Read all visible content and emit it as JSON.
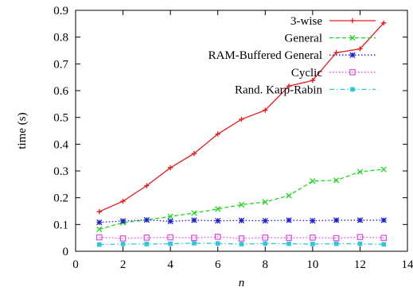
{
  "chart_data": {
    "type": "line",
    "title": "",
    "xlabel": "n",
    "ylabel": "time (s)",
    "xlim": [
      0,
      14
    ],
    "ylim": [
      0,
      0.9
    ],
    "xticks": [
      0,
      2,
      4,
      6,
      8,
      10,
      12,
      14
    ],
    "yticks": [
      0,
      0.1,
      0.2,
      0.3,
      0.4,
      0.5,
      0.6,
      0.7,
      0.8,
      0.9
    ],
    "grid": false,
    "legend_position": "top-right",
    "x": [
      1,
      2,
      3,
      4,
      5,
      6,
      7,
      8,
      9,
      10,
      11,
      12,
      13
    ],
    "series": [
      {
        "name": "3-wise",
        "color": "#e41a1c",
        "marker": "plus",
        "dash": "solid",
        "values": [
          0.148,
          0.187,
          0.245,
          0.312,
          0.365,
          0.438,
          0.493,
          0.527,
          0.617,
          0.638,
          0.742,
          0.756,
          0.853
        ]
      },
      {
        "name": "General",
        "color": "#1fd61f",
        "marker": "x",
        "dash": "dashed",
        "values": [
          0.082,
          0.107,
          0.117,
          0.13,
          0.143,
          0.158,
          0.174,
          0.184,
          0.208,
          0.262,
          0.265,
          0.297,
          0.306
        ]
      },
      {
        "name": "RAM-Buffered General",
        "color": "#1f1fd6",
        "marker": "star",
        "dash": "dotted",
        "values": [
          0.108,
          0.113,
          0.117,
          0.112,
          0.116,
          0.114,
          0.115,
          0.114,
          0.116,
          0.114,
          0.116,
          0.116,
          0.116
        ]
      },
      {
        "name": "Cyclic",
        "color": "#e04ae0",
        "marker": "square",
        "dash": "dotted",
        "values": [
          0.052,
          0.048,
          0.051,
          0.052,
          0.05,
          0.054,
          0.048,
          0.051,
          0.05,
          0.051,
          0.049,
          0.053,
          0.05
        ]
      },
      {
        "name": "Rand. Karp-Rabin",
        "color": "#29c9d9",
        "marker": "filled-square",
        "dash": "dashdot",
        "values": [
          0.025,
          0.027,
          0.027,
          0.028,
          0.03,
          0.029,
          0.027,
          0.029,
          0.028,
          0.027,
          0.028,
          0.028,
          0.026
        ]
      }
    ]
  }
}
